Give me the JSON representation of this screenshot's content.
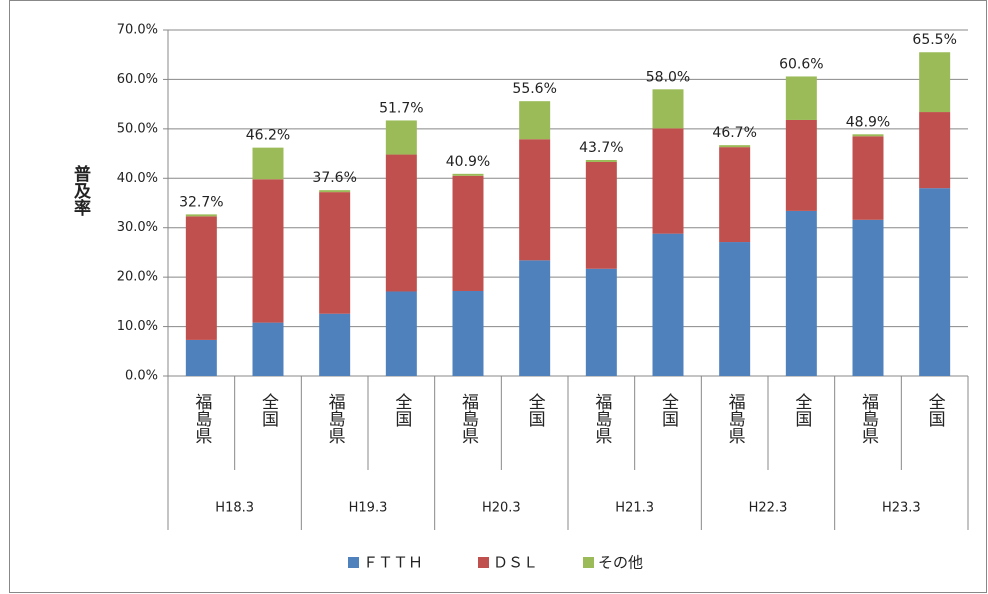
{
  "chart_data": {
    "type": "stacked_bar",
    "y_label": "普及率",
    "groups": [
      "H18.3",
      "H19.3",
      "H20.3",
      "H21.3",
      "H22.3",
      "H23.3"
    ],
    "categories": [
      "福島県",
      "全国",
      "福島県",
      "全国",
      "福島県",
      "全国",
      "福島県",
      "全国",
      "福島県",
      "全国",
      "福島県",
      "全国"
    ],
    "series": [
      {
        "name": "ＦＴＴＨ",
        "color": "#4f81bd",
        "values": [
          7.3,
          10.8,
          12.6,
          17.1,
          17.2,
          23.4,
          21.7,
          28.8,
          27.1,
          33.4,
          31.6,
          38.0
        ]
      },
      {
        "name": "ＤＳＬ",
        "color": "#c0504d",
        "values": [
          25.0,
          29.0,
          24.6,
          27.7,
          23.3,
          24.5,
          21.6,
          21.3,
          19.2,
          18.4,
          16.9,
          15.4
        ]
      },
      {
        "name": "その他",
        "color": "#9bbb59",
        "values": [
          0.4,
          6.4,
          0.4,
          6.9,
          0.4,
          7.7,
          0.4,
          7.9,
          0.4,
          8.8,
          0.4,
          12.1
        ]
      }
    ],
    "totals": [
      32.7,
      46.2,
      37.6,
      51.7,
      40.9,
      55.6,
      43.7,
      58.0,
      46.7,
      60.6,
      48.9,
      65.5
    ],
    "total_labels": [
      "32.7%",
      "46.2%",
      "37.6%",
      "51.7%",
      "40.9%",
      "55.6%",
      "43.7%",
      "58.0%",
      "46.7%",
      "60.6%",
      "48.9%",
      "65.5%"
    ],
    "ylim": [
      0,
      70
    ],
    "yticks": [
      {
        "value": 0,
        "label": "0.0%"
      },
      {
        "value": 10,
        "label": "10.0%"
      },
      {
        "value": 20,
        "label": "20.0%"
      },
      {
        "value": 30,
        "label": "30.0%"
      },
      {
        "value": 40,
        "label": "40.0%"
      },
      {
        "value": 50,
        "label": "50.0%"
      },
      {
        "value": 60,
        "label": "60.0%"
      },
      {
        "value": 70,
        "label": "70.0%"
      }
    ],
    "grid": true,
    "legend": "bottom"
  }
}
